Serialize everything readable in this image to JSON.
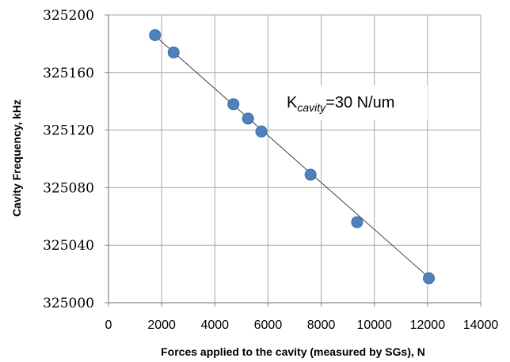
{
  "colors": {
    "marker": "#4f81bd",
    "marker_stroke": "#3a6aa3",
    "trendline": "#404040",
    "grid": "#a6a6a6",
    "axis": "#868686"
  },
  "chart_data": {
    "type": "scatter",
    "title": "",
    "xlabel": "Forces  applied  to the cavity (measured by SGs), N",
    "ylabel": "Cavity Frequency, kHz",
    "xlim": [
      0,
      14000
    ],
    "ylim": [
      325000,
      325200
    ],
    "x_ticks": [
      0,
      2000,
      4000,
      6000,
      8000,
      10000,
      12000,
      14000
    ],
    "y_ticks": [
      325000,
      325040,
      325080,
      325120,
      325160,
      325200
    ],
    "x_tick_labels": [
      "0",
      "2000",
      "4000",
      "6000",
      "8000",
      "10000",
      "12000",
      "14000"
    ],
    "y_tick_labels": [
      "325000",
      "325040",
      "325080",
      "325120",
      "325160",
      "325200"
    ],
    "grid": true,
    "series": [
      {
        "x": [
          1750,
          2450,
          4700,
          5250,
          5750,
          7600,
          9350,
          12050
        ],
        "y": [
          325186,
          325174,
          325138,
          325128,
          325119,
          325089,
          325056,
          325017
        ]
      }
    ],
    "trendline": {
      "x": [
        1750,
        12050
      ],
      "y": [
        325185.5,
        325017.5
      ]
    },
    "annotation": {
      "main": "K",
      "subscript": "cavity",
      "rest": "=30 N/um"
    }
  }
}
